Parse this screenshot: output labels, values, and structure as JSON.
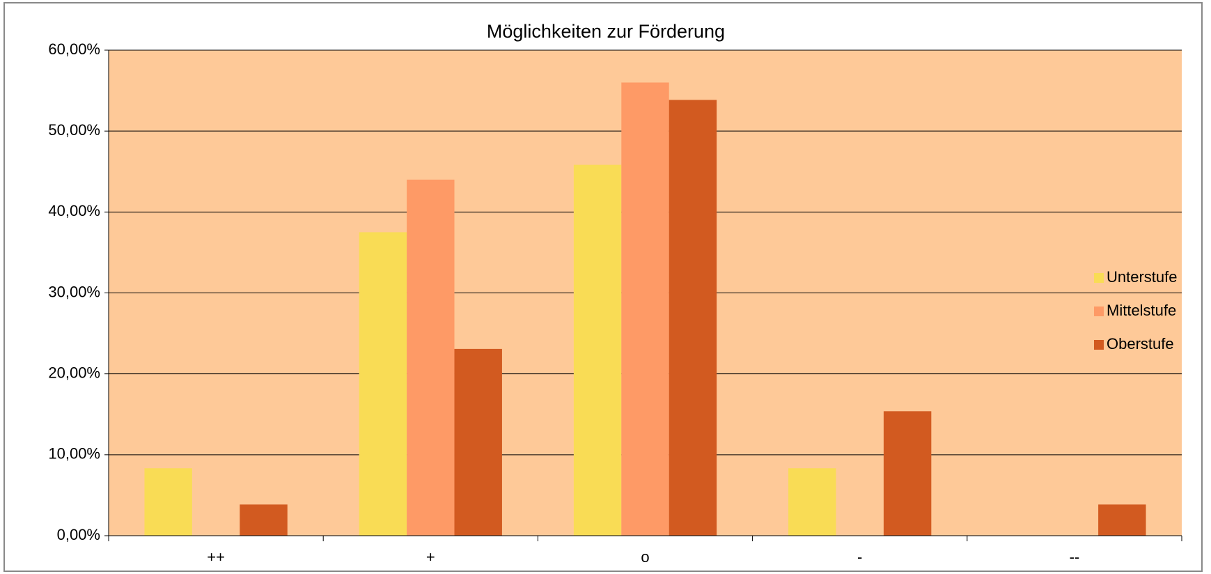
{
  "chart_data": {
    "type": "bar",
    "title": "Möglichkeiten zur Förderung",
    "categories": [
      "++",
      "+",
      "o",
      "-",
      "--"
    ],
    "series": [
      {
        "name": "Unterstufe",
        "color": "#f9dc55",
        "values": [
          8.33,
          37.5,
          45.83,
          8.33,
          0
        ]
      },
      {
        "name": "Mittelstufe",
        "color": "#fe9a66",
        "values": [
          0,
          44,
          56,
          0,
          0
        ]
      },
      {
        "name": "Oberstufe",
        "color": "#d25a20",
        "values": [
          3.85,
          23.08,
          53.85,
          15.38,
          3.85
        ]
      }
    ],
    "ylim": [
      0,
      60
    ],
    "yticks": [
      {
        "value": 0,
        "label": "0,00%"
      },
      {
        "value": 10,
        "label": "10,00%"
      },
      {
        "value": 20,
        "label": "20,00%"
      },
      {
        "value": 30,
        "label": "30,00%"
      },
      {
        "value": 40,
        "label": "40,00%"
      },
      {
        "value": 50,
        "label": "50,00%"
      },
      {
        "value": 60,
        "label": "60,00%"
      }
    ],
    "grid": true,
    "legend": "right",
    "plot_background": "#fec998"
  }
}
